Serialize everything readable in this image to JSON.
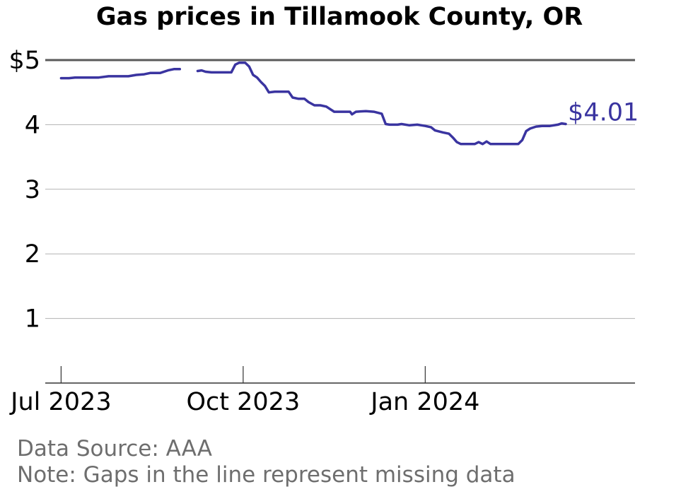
{
  "chart_data": {
    "type": "line",
    "title": "Gas prices in Tillamook County, OR",
    "xlabel": "",
    "ylabel": "",
    "y_ticks": [
      "1",
      "2",
      "3",
      "4",
      "$5"
    ],
    "y_tick_values": [
      1,
      2,
      3,
      4,
      5
    ],
    "ylim": [
      0,
      5
    ],
    "xlim": [
      "2023-06-23",
      "2024-04-16"
    ],
    "x_ticks": [
      "Jul 2023",
      "Oct 2023",
      "Jan 2024"
    ],
    "x_tick_dates": [
      "2023-07-01",
      "2023-10-01",
      "2024-01-01"
    ],
    "grid": true,
    "end_label": "$4.01",
    "line_color": "#3a34a0",
    "series": [
      {
        "segments": [
          [
            [
              "2023-07-01",
              4.72
            ],
            [
              "2023-07-05",
              4.72
            ],
            [
              "2023-07-08",
              4.73
            ],
            [
              "2023-07-12",
              4.73
            ],
            [
              "2023-07-15",
              4.73
            ],
            [
              "2023-07-20",
              4.73
            ],
            [
              "2023-07-25",
              4.75
            ],
            [
              "2023-07-30",
              4.75
            ],
            [
              "2023-08-04",
              4.75
            ],
            [
              "2023-08-08",
              4.77
            ],
            [
              "2023-08-12",
              4.78
            ],
            [
              "2023-08-15",
              4.8
            ],
            [
              "2023-08-20",
              4.8
            ],
            [
              "2023-08-24",
              4.84
            ],
            [
              "2023-08-27",
              4.86
            ],
            [
              "2023-08-30",
              4.86
            ]
          ],
          [
            [
              "2023-09-08",
              4.83
            ],
            [
              "2023-09-10",
              4.84
            ],
            [
              "2023-09-12",
              4.82
            ],
            [
              "2023-09-15",
              4.81
            ],
            [
              "2023-09-20",
              4.81
            ],
            [
              "2023-09-25",
              4.81
            ],
            [
              "2023-09-27",
              4.93
            ],
            [
              "2023-09-29",
              4.96
            ],
            [
              "2023-10-02",
              4.96
            ],
            [
              "2023-10-04",
              4.9
            ],
            [
              "2023-10-06",
              4.77
            ],
            [
              "2023-10-08",
              4.73
            ],
            [
              "2023-10-10",
              4.66
            ],
            [
              "2023-10-12",
              4.6
            ],
            [
              "2023-10-14",
              4.5
            ],
            [
              "2023-10-17",
              4.51
            ],
            [
              "2023-10-20",
              4.51
            ],
            [
              "2023-10-24",
              4.51
            ],
            [
              "2023-10-26",
              4.42
            ],
            [
              "2023-10-29",
              4.4
            ],
            [
              "2023-11-01",
              4.4
            ],
            [
              "2023-11-03",
              4.35
            ],
            [
              "2023-11-06",
              4.3
            ],
            [
              "2023-11-09",
              4.3
            ],
            [
              "2023-11-12",
              4.28
            ],
            [
              "2023-11-16",
              4.2
            ],
            [
              "2023-11-20",
              4.2
            ],
            [
              "2023-11-24",
              4.2
            ],
            [
              "2023-11-25",
              4.16
            ],
            [
              "2023-11-27",
              4.2
            ],
            [
              "2023-12-02",
              4.21
            ],
            [
              "2023-12-06",
              4.2
            ],
            [
              "2023-12-10",
              4.17
            ],
            [
              "2023-12-12",
              4.01
            ],
            [
              "2023-12-14",
              4.0
            ],
            [
              "2023-12-18",
              4.0
            ],
            [
              "2023-12-20",
              4.01
            ],
            [
              "2023-12-24",
              3.99
            ],
            [
              "2023-12-28",
              4.0
            ],
            [
              "2024-01-01",
              3.98
            ],
            [
              "2024-01-04",
              3.96
            ],
            [
              "2024-01-06",
              3.91
            ],
            [
              "2024-01-10",
              3.88
            ],
            [
              "2024-01-13",
              3.86
            ],
            [
              "2024-01-15",
              3.8
            ],
            [
              "2024-01-17",
              3.73
            ],
            [
              "2024-01-19",
              3.7
            ],
            [
              "2024-01-22",
              3.7
            ],
            [
              "2024-01-26",
              3.7
            ],
            [
              "2024-01-28",
              3.73
            ],
            [
              "2024-01-30",
              3.7
            ],
            [
              "2024-02-01",
              3.74
            ],
            [
              "2024-02-03",
              3.7
            ],
            [
              "2024-02-08",
              3.7
            ],
            [
              "2024-02-13",
              3.7
            ],
            [
              "2024-02-17",
              3.7
            ],
            [
              "2024-02-19",
              3.76
            ],
            [
              "2024-02-21",
              3.9
            ],
            [
              "2024-02-23",
              3.94
            ],
            [
              "2024-02-26",
              3.97
            ],
            [
              "2024-02-29",
              3.98
            ],
            [
              "2024-03-04",
              3.98
            ],
            [
              "2024-03-08",
              4.0
            ],
            [
              "2024-03-10",
              4.02
            ],
            [
              "2024-03-12",
              4.01
            ]
          ]
        ]
      }
    ]
  },
  "footer": {
    "source": "Data Source: AAA",
    "note": "Note: Gaps in the line represent missing data"
  }
}
